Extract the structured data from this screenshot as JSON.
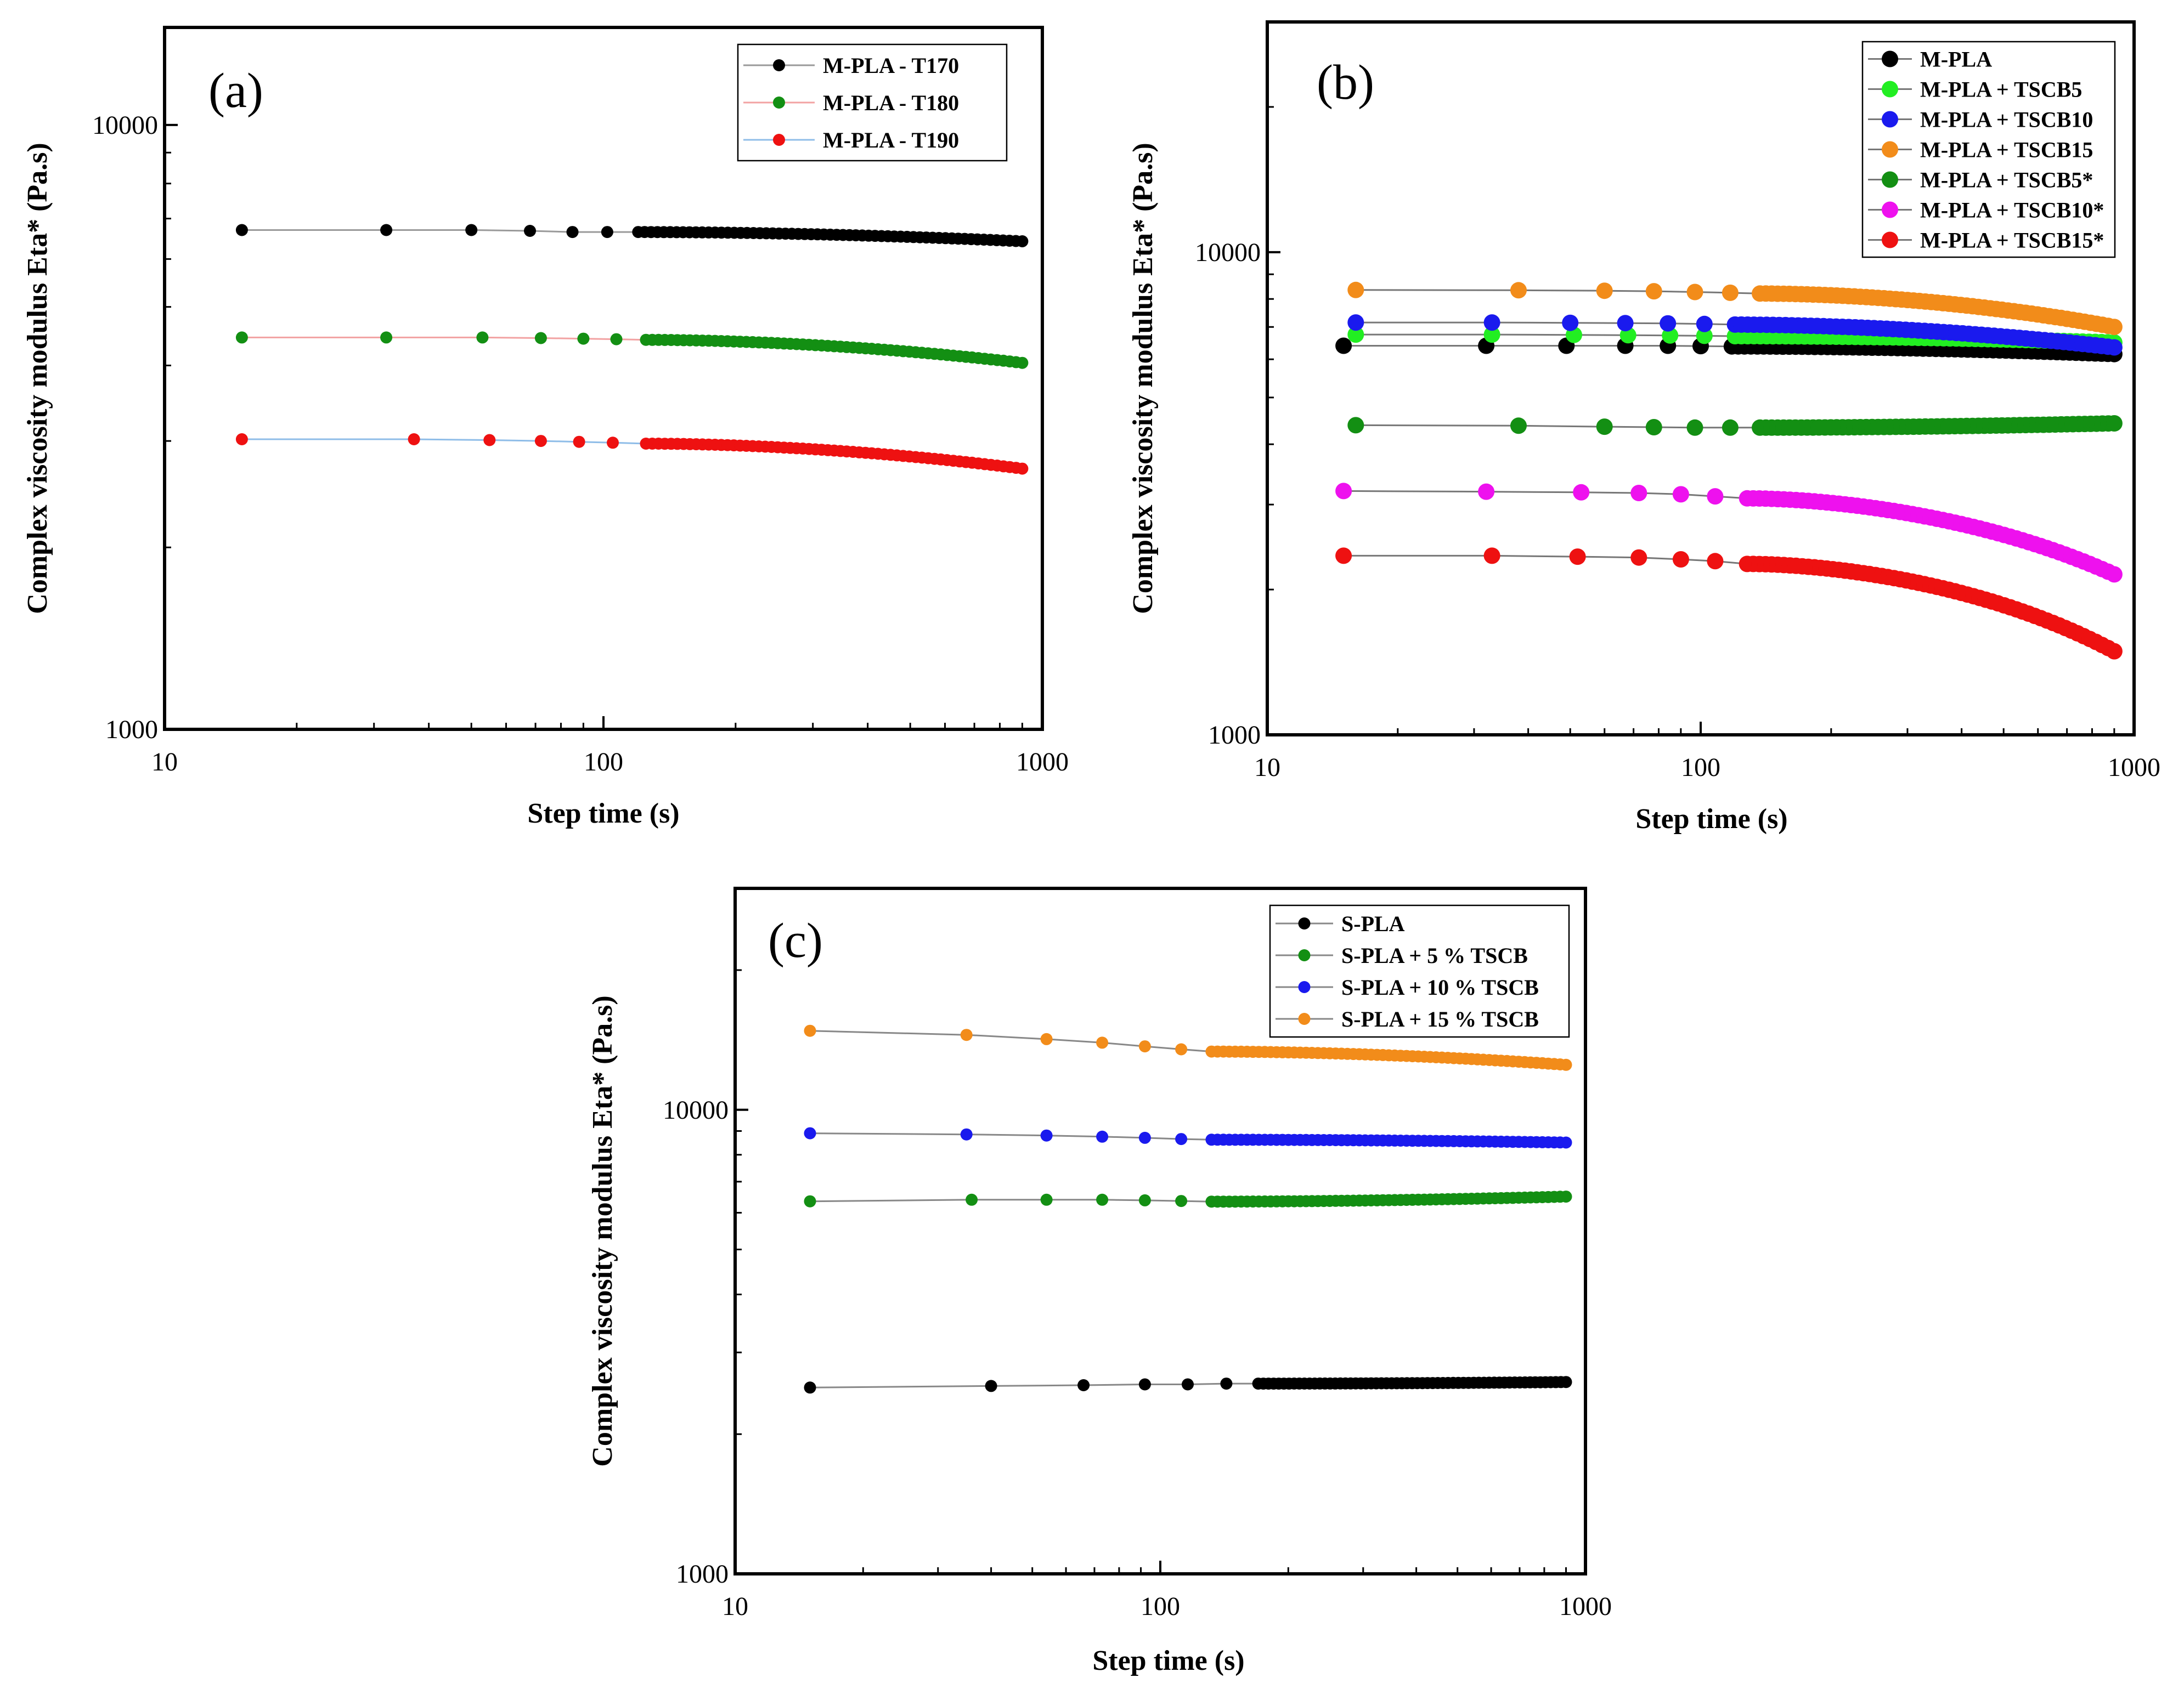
{
  "chart_data": [
    {
      "panel": "(a)",
      "type": "line",
      "xlabel": "Step time (s)",
      "ylabel": "Complex viscosity modulus Eta* (Pa.s)",
      "xscale": "log",
      "yscale": "log",
      "xlim": [
        10,
        1000
      ],
      "ylim": [
        1000,
        14500
      ],
      "xticks": [
        10,
        100,
        1000
      ],
      "xtick_labels": [
        "10",
        "100",
        "1000"
      ],
      "yticks": [
        1000,
        10000
      ],
      "ytick_labels": [
        "1000",
        "10000"
      ],
      "legend_position": "top-right",
      "series": [
        {
          "name": "M-PLA - T170",
          "marker_color": "#000000",
          "line_color": "#9a9a9a",
          "x": [
            15,
            32,
            50,
            68,
            85,
            102,
            120
          ],
          "y": [
            6700,
            6700,
            6700,
            6680,
            6650,
            6650,
            6650
          ],
          "x_end": 900,
          "y_end": 6420
        },
        {
          "name": "M-PLA - T180",
          "marker_color": "#138f13",
          "line_color": "#f2a2a2",
          "x": [
            15,
            32,
            53,
            72,
            90,
            107,
            125
          ],
          "y": [
            4450,
            4450,
            4450,
            4440,
            4430,
            4420,
            4410
          ],
          "x_end": 900,
          "y_end": 4040
        },
        {
          "name": "M-PLA - T190",
          "marker_color": "#ee1111",
          "line_color": "#8fbde8",
          "x": [
            15,
            37,
            55,
            72,
            88,
            105,
            125
          ],
          "y": [
            3020,
            3020,
            3010,
            3000,
            2990,
            2980,
            2970
          ],
          "x_end": 900,
          "y_end": 2700
        }
      ]
    },
    {
      "panel": "(b)",
      "type": "line",
      "xlabel": "Step time (s)",
      "ylabel": "Complex viscosity modulus Eta* (Pa.s)",
      "xscale": "log",
      "yscale": "log",
      "xlim": [
        10,
        1000
      ],
      "ylim": [
        1000,
        30000
      ],
      "xticks": [
        10,
        100,
        1000
      ],
      "xtick_labels": [
        "10",
        "100",
        "1000"
      ],
      "yticks": [
        1000,
        10000
      ],
      "ytick_labels": [
        "1000",
        "10000"
      ],
      "legend_position": "top-right",
      "series": [
        {
          "name": "M-PLA",
          "marker_color": "#000000",
          "line_color": "#777777",
          "x": [
            15,
            32,
            49,
            67,
            84,
            100,
            118
          ],
          "y": [
            6400,
            6400,
            6400,
            6400,
            6400,
            6390,
            6380
          ],
          "x_end": 900,
          "y_end": 6150
        },
        {
          "name": "M-PLA + TSCB5",
          "marker_color": "#22ee22",
          "line_color": "#777777",
          "x": [
            16,
            33,
            51,
            68,
            85,
            102,
            120
          ],
          "y": [
            6750,
            6750,
            6740,
            6730,
            6720,
            6710,
            6700
          ],
          "x_end": 900,
          "y_end": 6500
        },
        {
          "name": "M-PLA + TSCB10",
          "marker_color": "#1a1aee",
          "line_color": "#777777",
          "x": [
            16,
            33,
            50,
            67,
            84,
            102,
            120
          ],
          "y": [
            7150,
            7150,
            7140,
            7130,
            7120,
            7100,
            7080
          ],
          "x_end": 900,
          "y_end": 6350
        },
        {
          "name": "M-PLA + TSCB15",
          "marker_color": "#f28c1a",
          "line_color": "#777777",
          "x": [
            16,
            38,
            60,
            78,
            97,
            117,
            137
          ],
          "y": [
            8350,
            8340,
            8320,
            8300,
            8270,
            8240,
            8210
          ],
          "x_end": 900,
          "y_end": 7000
        },
        {
          "name": "M-PLA + TSCB5*",
          "marker_color": "#138f13",
          "line_color": "#777777",
          "x": [
            16,
            38,
            60,
            78,
            97,
            117,
            137
          ],
          "y": [
            4380,
            4370,
            4350,
            4340,
            4330,
            4330,
            4330
          ],
          "x_end": 900,
          "y_end": 4420
        },
        {
          "name": "M-PLA + TSCB10*",
          "marker_color": "#ee11ee",
          "line_color": "#777777",
          "x": [
            15,
            32,
            53,
            72,
            90,
            108,
            128
          ],
          "y": [
            3200,
            3190,
            3180,
            3170,
            3150,
            3120,
            3090
          ],
          "x_end": 900,
          "y_end": 2150
        },
        {
          "name": "M-PLA + TSCB15*",
          "marker_color": "#ee1111",
          "line_color": "#777777",
          "x": [
            15,
            33,
            52,
            72,
            90,
            108,
            128
          ],
          "y": [
            2350,
            2350,
            2340,
            2330,
            2310,
            2290,
            2260
          ],
          "x_end": 900,
          "y_end": 1490
        }
      ]
    },
    {
      "panel": "(c)",
      "type": "line",
      "xlabel": "Step time (s)",
      "ylabel": "Complex viscosity modulus Eta* (Pa.s)",
      "xscale": "log",
      "yscale": "log",
      "xlim": [
        10,
        1000
      ],
      "ylim": [
        1000,
        30000
      ],
      "xticks": [
        10,
        100,
        1000
      ],
      "xtick_labels": [
        "10",
        "100",
        "1000"
      ],
      "yticks": [
        1000,
        10000
      ],
      "ytick_labels": [
        "1000",
        "10000"
      ],
      "legend_position": "top-right",
      "series": [
        {
          "name": "S-PLA",
          "marker_color": "#000000",
          "line_color": "#888888",
          "x": [
            15,
            40,
            66,
            92,
            116,
            143,
            170
          ],
          "y": [
            2520,
            2540,
            2550,
            2560,
            2560,
            2570,
            2570
          ],
          "x_end": 900,
          "y_end": 2590
        },
        {
          "name": "S-PLA + 5 % TSCB",
          "marker_color": "#138f13",
          "line_color": "#888888",
          "x": [
            15,
            36,
            54,
            73,
            92,
            112,
            132
          ],
          "y": [
            6350,
            6400,
            6400,
            6400,
            6380,
            6360,
            6340
          ],
          "x_end": 900,
          "y_end": 6500
        },
        {
          "name": "S-PLA + 10 % TSCB",
          "marker_color": "#1a1aee",
          "line_color": "#888888",
          "x": [
            15,
            35,
            54,
            73,
            92,
            112,
            132
          ],
          "y": [
            8900,
            8850,
            8800,
            8750,
            8700,
            8650,
            8620
          ],
          "x_end": 900,
          "y_end": 8500
        },
        {
          "name": "S-PLA + 15 % TSCB",
          "marker_color": "#f28c1a",
          "line_color": "#888888",
          "x": [
            15,
            35,
            54,
            73,
            92,
            112,
            132
          ],
          "y": [
            14800,
            14500,
            14200,
            13950,
            13700,
            13500,
            13350
          ],
          "x_end": 900,
          "y_end": 12500
        }
      ]
    }
  ]
}
